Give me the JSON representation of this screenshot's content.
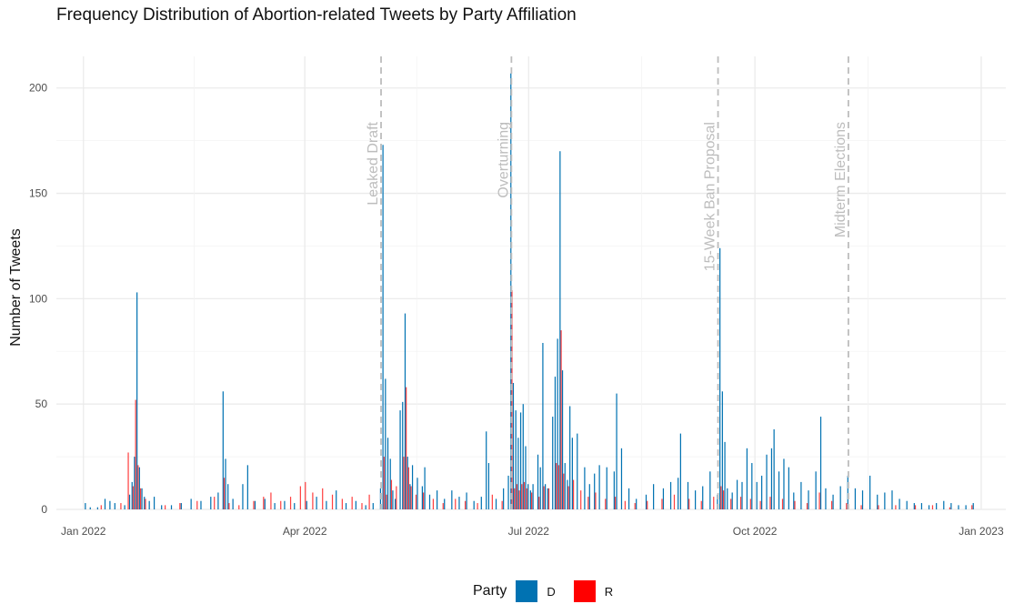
{
  "chart_data": {
    "type": "bar",
    "title": "Frequency Distribution of Abortion-related Tweets by Party Affiliation",
    "xlabel": "",
    "ylabel": "Number of Tweets",
    "x_ticks": [
      {
        "date": "2022-01-01",
        "label": "Jan 2022"
      },
      {
        "date": "2022-04-01",
        "label": "Apr 2022"
      },
      {
        "date": "2022-07-01",
        "label": "Jul 2022"
      },
      {
        "date": "2022-10-01",
        "label": "Oct 2022"
      },
      {
        "date": "2023-01-01",
        "label": "Jan 2023"
      }
    ],
    "y_ticks": [
      0,
      50,
      100,
      150,
      200
    ],
    "ylim": [
      0,
      215
    ],
    "xlim": [
      "2021-12-21",
      "2023-01-11"
    ],
    "grid": true,
    "legend_title": "Party",
    "legend_position": "bottom",
    "series": [
      {
        "name": "D",
        "color": "#0072B2",
        "points": [
          [
            "2022-01-02",
            3
          ],
          [
            "2022-01-04",
            1
          ],
          [
            "2022-01-07",
            1
          ],
          [
            "2022-01-10",
            5
          ],
          [
            "2022-01-12",
            4
          ],
          [
            "2022-01-14",
            3
          ],
          [
            "2022-01-18",
            2
          ],
          [
            "2022-01-20",
            7
          ],
          [
            "2022-01-21",
            13
          ],
          [
            "2022-01-22",
            25
          ],
          [
            "2022-01-23",
            103
          ],
          [
            "2022-01-24",
            20
          ],
          [
            "2022-01-25",
            10
          ],
          [
            "2022-01-26",
            6
          ],
          [
            "2022-01-28",
            4
          ],
          [
            "2022-01-30",
            6
          ],
          [
            "2022-02-02",
            2
          ],
          [
            "2022-02-06",
            2
          ],
          [
            "2022-02-10",
            3
          ],
          [
            "2022-02-14",
            5
          ],
          [
            "2022-02-18",
            4
          ],
          [
            "2022-02-22",
            6
          ],
          [
            "2022-02-25",
            8
          ],
          [
            "2022-02-27",
            56
          ],
          [
            "2022-02-28",
            24
          ],
          [
            "2022-03-01",
            12
          ],
          [
            "2022-03-03",
            5
          ],
          [
            "2022-03-07",
            12
          ],
          [
            "2022-03-09",
            21
          ],
          [
            "2022-03-12",
            4
          ],
          [
            "2022-03-16",
            5
          ],
          [
            "2022-03-20",
            3
          ],
          [
            "2022-03-24",
            4
          ],
          [
            "2022-03-28",
            3
          ],
          [
            "2022-04-02",
            4
          ],
          [
            "2022-04-06",
            6
          ],
          [
            "2022-04-10",
            4
          ],
          [
            "2022-04-14",
            9
          ],
          [
            "2022-04-18",
            3
          ],
          [
            "2022-04-22",
            4
          ],
          [
            "2022-04-26",
            2
          ],
          [
            "2022-04-29",
            3
          ],
          [
            "2022-05-02",
            10
          ],
          [
            "2022-05-03",
            173
          ],
          [
            "2022-05-04",
            62
          ],
          [
            "2022-05-05",
            34
          ],
          [
            "2022-05-06",
            24
          ],
          [
            "2022-05-07",
            9
          ],
          [
            "2022-05-08",
            5
          ],
          [
            "2022-05-10",
            47
          ],
          [
            "2022-05-11",
            51
          ],
          [
            "2022-05-12",
            93
          ],
          [
            "2022-05-13",
            25
          ],
          [
            "2022-05-14",
            12
          ],
          [
            "2022-05-15",
            21
          ],
          [
            "2022-05-17",
            15
          ],
          [
            "2022-05-19",
            11
          ],
          [
            "2022-05-20",
            20
          ],
          [
            "2022-05-22",
            7
          ],
          [
            "2022-05-25",
            9
          ],
          [
            "2022-05-28",
            5
          ],
          [
            "2022-05-31",
            9
          ],
          [
            "2022-06-03",
            6
          ],
          [
            "2022-06-06",
            8
          ],
          [
            "2022-06-09",
            4
          ],
          [
            "2022-06-12",
            6
          ],
          [
            "2022-06-14",
            37
          ],
          [
            "2022-06-15",
            22
          ],
          [
            "2022-06-18",
            5
          ],
          [
            "2022-06-21",
            10
          ],
          [
            "2022-06-23",
            16
          ],
          [
            "2022-06-24",
            207
          ],
          [
            "2022-06-25",
            60
          ],
          [
            "2022-06-26",
            47
          ],
          [
            "2022-06-27",
            34
          ],
          [
            "2022-06-28",
            46
          ],
          [
            "2022-06-29",
            50
          ],
          [
            "2022-06-30",
            30
          ],
          [
            "2022-07-01",
            12
          ],
          [
            "2022-07-02",
            9
          ],
          [
            "2022-07-03",
            12
          ],
          [
            "2022-07-05",
            26
          ],
          [
            "2022-07-06",
            20
          ],
          [
            "2022-07-07",
            79
          ],
          [
            "2022-07-08",
            12
          ],
          [
            "2022-07-09",
            10
          ],
          [
            "2022-07-11",
            44
          ],
          [
            "2022-07-12",
            63
          ],
          [
            "2022-07-13",
            81
          ],
          [
            "2022-07-14",
            170
          ],
          [
            "2022-07-15",
            66
          ],
          [
            "2022-07-16",
            22
          ],
          [
            "2022-07-17",
            14
          ],
          [
            "2022-07-18",
            49
          ],
          [
            "2022-07-19",
            34
          ],
          [
            "2022-07-21",
            36
          ],
          [
            "2022-07-24",
            20
          ],
          [
            "2022-07-26",
            12
          ],
          [
            "2022-07-28",
            17
          ],
          [
            "2022-07-30",
            21
          ],
          [
            "2022-08-02",
            20
          ],
          [
            "2022-08-05",
            18
          ],
          [
            "2022-08-06",
            55
          ],
          [
            "2022-08-08",
            29
          ],
          [
            "2022-08-11",
            10
          ],
          [
            "2022-08-14",
            5
          ],
          [
            "2022-08-18",
            7
          ],
          [
            "2022-08-21",
            12
          ],
          [
            "2022-08-25",
            10
          ],
          [
            "2022-08-28",
            13
          ],
          [
            "2022-08-31",
            15
          ],
          [
            "2022-09-01",
            36
          ],
          [
            "2022-09-04",
            13
          ],
          [
            "2022-09-07",
            9
          ],
          [
            "2022-09-10",
            11
          ],
          [
            "2022-09-13",
            18
          ],
          [
            "2022-09-16",
            7
          ],
          [
            "2022-09-17",
            124
          ],
          [
            "2022-09-18",
            56
          ],
          [
            "2022-09-19",
            32
          ],
          [
            "2022-09-20",
            10
          ],
          [
            "2022-09-22",
            8
          ],
          [
            "2022-09-24",
            14
          ],
          [
            "2022-09-26",
            13
          ],
          [
            "2022-09-28",
            29
          ],
          [
            "2022-09-30",
            22
          ],
          [
            "2022-10-02",
            13
          ],
          [
            "2022-10-04",
            16
          ],
          [
            "2022-10-06",
            26
          ],
          [
            "2022-10-08",
            29
          ],
          [
            "2022-10-09",
            38
          ],
          [
            "2022-10-11",
            18
          ],
          [
            "2022-10-13",
            24
          ],
          [
            "2022-10-15",
            20
          ],
          [
            "2022-10-17",
            8
          ],
          [
            "2022-10-20",
            13
          ],
          [
            "2022-10-23",
            9
          ],
          [
            "2022-10-26",
            18
          ],
          [
            "2022-10-28",
            44
          ],
          [
            "2022-10-30",
            10
          ],
          [
            "2022-11-02",
            7
          ],
          [
            "2022-11-05",
            11
          ],
          [
            "2022-11-08",
            16
          ],
          [
            "2022-11-11",
            10
          ],
          [
            "2022-11-14",
            9
          ],
          [
            "2022-11-17",
            16
          ],
          [
            "2022-11-20",
            7
          ],
          [
            "2022-11-23",
            8
          ],
          [
            "2022-11-26",
            9
          ],
          [
            "2022-11-29",
            5
          ],
          [
            "2022-12-02",
            4
          ],
          [
            "2022-12-05",
            3
          ],
          [
            "2022-12-08",
            3
          ],
          [
            "2022-12-11",
            2
          ],
          [
            "2022-12-14",
            3
          ],
          [
            "2022-12-17",
            4
          ],
          [
            "2022-12-20",
            3
          ],
          [
            "2022-12-23",
            2
          ],
          [
            "2022-12-26",
            2
          ],
          [
            "2022-12-29",
            3
          ]
        ]
      },
      {
        "name": "R",
        "color": "#FF0000",
        "points": [
          [
            "2022-01-08",
            2
          ],
          [
            "2022-01-16",
            3
          ],
          [
            "2022-01-19",
            27
          ],
          [
            "2022-01-21",
            11
          ],
          [
            "2022-01-22",
            52
          ],
          [
            "2022-01-23",
            21
          ],
          [
            "2022-01-24",
            10
          ],
          [
            "2022-01-26",
            5
          ],
          [
            "2022-02-03",
            2
          ],
          [
            "2022-02-09",
            3
          ],
          [
            "2022-02-16",
            4
          ],
          [
            "2022-02-23",
            6
          ],
          [
            "2022-02-27",
            15
          ],
          [
            "2022-03-01",
            3
          ],
          [
            "2022-03-05",
            2
          ],
          [
            "2022-03-11",
            4
          ],
          [
            "2022-03-15",
            6
          ],
          [
            "2022-03-18",
            8
          ],
          [
            "2022-03-22",
            4
          ],
          [
            "2022-03-26",
            6
          ],
          [
            "2022-03-30",
            11
          ],
          [
            "2022-04-01",
            13
          ],
          [
            "2022-04-04",
            8
          ],
          [
            "2022-04-08",
            10
          ],
          [
            "2022-04-12",
            7
          ],
          [
            "2022-04-16",
            5
          ],
          [
            "2022-04-20",
            6
          ],
          [
            "2022-04-24",
            3
          ],
          [
            "2022-04-27",
            7
          ],
          [
            "2022-05-03",
            25
          ],
          [
            "2022-05-04",
            7
          ],
          [
            "2022-05-06",
            14
          ],
          [
            "2022-05-08",
            11
          ],
          [
            "2022-05-11",
            25
          ],
          [
            "2022-05-12",
            58
          ],
          [
            "2022-05-13",
            20
          ],
          [
            "2022-05-14",
            11
          ],
          [
            "2022-05-16",
            7
          ],
          [
            "2022-05-19",
            8
          ],
          [
            "2022-05-23",
            5
          ],
          [
            "2022-05-27",
            3
          ],
          [
            "2022-06-01",
            5
          ],
          [
            "2022-06-05",
            4
          ],
          [
            "2022-06-10",
            3
          ],
          [
            "2022-06-16",
            7
          ],
          [
            "2022-06-20",
            4
          ],
          [
            "2022-06-24",
            104
          ],
          [
            "2022-06-25",
            10
          ],
          [
            "2022-06-26",
            12
          ],
          [
            "2022-06-27",
            9
          ],
          [
            "2022-06-28",
            12
          ],
          [
            "2022-06-29",
            13
          ],
          [
            "2022-06-30",
            10
          ],
          [
            "2022-07-02",
            8
          ],
          [
            "2022-07-05",
            6
          ],
          [
            "2022-07-07",
            11
          ],
          [
            "2022-07-09",
            10
          ],
          [
            "2022-07-12",
            22
          ],
          [
            "2022-07-13",
            21
          ],
          [
            "2022-07-14",
            85
          ],
          [
            "2022-07-15",
            17
          ],
          [
            "2022-07-17",
            11
          ],
          [
            "2022-07-19",
            14
          ],
          [
            "2022-07-22",
            9
          ],
          [
            "2022-07-25",
            6
          ],
          [
            "2022-07-28",
            8
          ],
          [
            "2022-08-01",
            5
          ],
          [
            "2022-08-05",
            6
          ],
          [
            "2022-08-09",
            4
          ],
          [
            "2022-08-13",
            3
          ],
          [
            "2022-08-18",
            4
          ],
          [
            "2022-08-24",
            5
          ],
          [
            "2022-08-29",
            7
          ],
          [
            "2022-09-04",
            5
          ],
          [
            "2022-09-09",
            4
          ],
          [
            "2022-09-14",
            6
          ],
          [
            "2022-09-17",
            11
          ],
          [
            "2022-09-18",
            9
          ],
          [
            "2022-09-21",
            5
          ],
          [
            "2022-09-25",
            6
          ],
          [
            "2022-09-29",
            5
          ],
          [
            "2022-10-03",
            4
          ],
          [
            "2022-10-07",
            6
          ],
          [
            "2022-10-12",
            5
          ],
          [
            "2022-10-17",
            4
          ],
          [
            "2022-10-22",
            3
          ],
          [
            "2022-10-27",
            8
          ],
          [
            "2022-11-01",
            4
          ],
          [
            "2022-11-07",
            3
          ],
          [
            "2022-11-13",
            2
          ],
          [
            "2022-11-20",
            2
          ],
          [
            "2022-11-27",
            2
          ],
          [
            "2022-12-05",
            2
          ],
          [
            "2022-12-12",
            2
          ],
          [
            "2022-12-19",
            1
          ],
          [
            "2022-12-28",
            2
          ]
        ]
      }
    ],
    "events": [
      {
        "date": "2022-05-02",
        "label": "Leaked Draft"
      },
      {
        "date": "2022-06-24",
        "label": "Overturning"
      },
      {
        "date": "2022-09-16",
        "label": "15-Week Ban Proposal"
      },
      {
        "date": "2022-11-08",
        "label": "Midterm Elections"
      }
    ]
  }
}
